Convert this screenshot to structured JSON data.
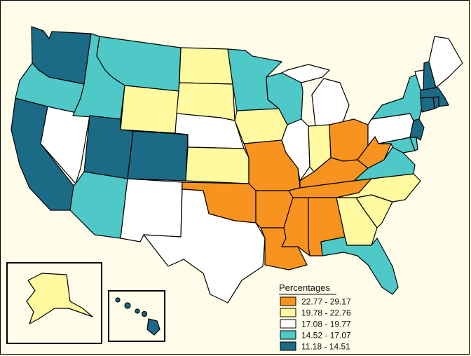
{
  "legend": {
    "title": "Percentages",
    "classes": [
      {
        "label": "22.77 - 29.17",
        "color": "#f7931e"
      },
      {
        "label": "19.78 - 22.76",
        "color": "#fffaa0"
      },
      {
        "label": "17.08 - 19.77",
        "color": "#ffffff"
      },
      {
        "label": "14.52 - 17.07",
        "color": "#4ec9c8"
      },
      {
        "label": "11.18 - 14.51",
        "color": "#1b6a86"
      }
    ]
  },
  "state_classes": {
    "WA": 4,
    "OR": 3,
    "CA": 4,
    "NV": 2,
    "ID": 3,
    "MT": 3,
    "WY": 1,
    "UT": 4,
    "CO": 4,
    "AZ": 3,
    "NM": 2,
    "ND": 1,
    "SD": 1,
    "NE": 2,
    "KS": 1,
    "OK": 0,
    "TX": 2,
    "MN": 3,
    "IA": 1,
    "MO": 0,
    "AR": 0,
    "LA": 0,
    "WI": 3,
    "IL": 2,
    "MI": 2,
    "IN": 1,
    "OH": 0,
    "KY": 0,
    "TN": 0,
    "MS": 0,
    "AL": 0,
    "GA": 1,
    "FL": 3,
    "SC": 1,
    "NC": 1,
    "VA": 3,
    "WV": 0,
    "MD": 3,
    "DE": 3,
    "PA": 2,
    "NY": 3,
    "NJ": 4,
    "CT": 4,
    "RI": 4,
    "MA": 4,
    "VT": 2,
    "NH": 4,
    "ME": 2,
    "AK": 1,
    "HI": 4
  }
}
